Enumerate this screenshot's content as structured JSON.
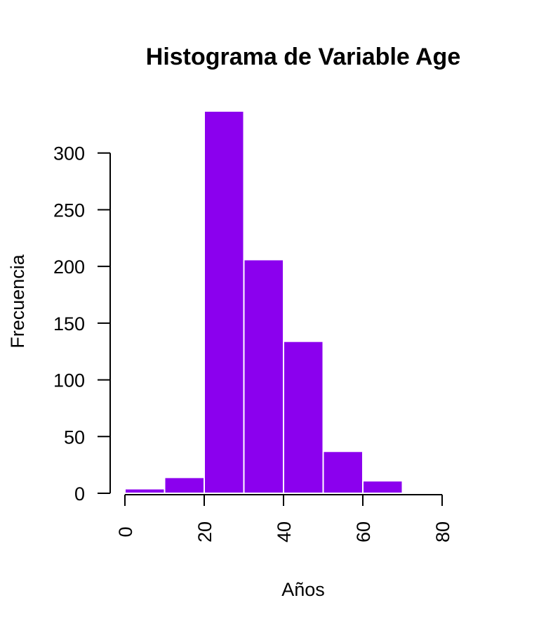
{
  "chart_data": {
    "type": "bar",
    "title": "Histograma de Variable Age",
    "xlabel": "Años",
    "ylabel": "Frecuencia",
    "bins": [
      [
        0,
        10
      ],
      [
        10,
        20
      ],
      [
        20,
        30
      ],
      [
        30,
        40
      ],
      [
        40,
        50
      ],
      [
        50,
        60
      ],
      [
        60,
        70
      ],
      [
        70,
        80
      ]
    ],
    "values": [
      4,
      14,
      337,
      206,
      134,
      37,
      11,
      0
    ],
    "xticks": [
      0,
      20,
      40,
      60,
      80
    ],
    "yticks": [
      0,
      50,
      100,
      150,
      200,
      250,
      300
    ],
    "xlim": [
      0,
      80
    ],
    "ylim": [
      0,
      337
    ],
    "bar_color": "#8b00ee",
    "border_color": "#ffffff",
    "grid": false
  }
}
